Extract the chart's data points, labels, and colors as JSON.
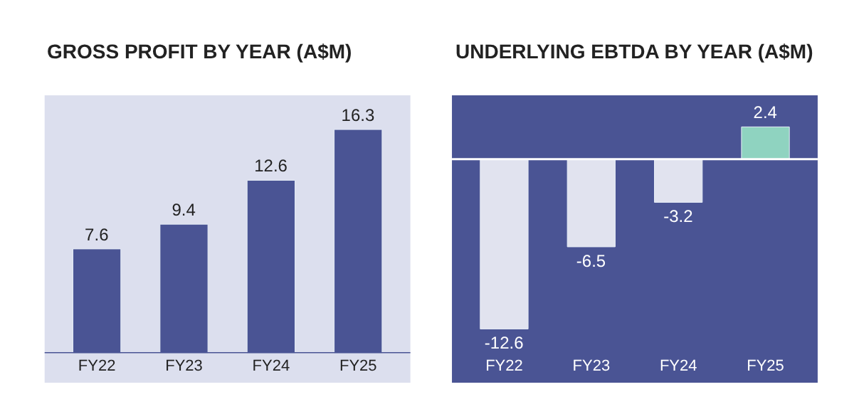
{
  "chart_data": [
    {
      "type": "bar",
      "title": "GROSS PROFIT BY YEAR (A$M)",
      "categories": [
        "FY22",
        "FY23",
        "FY24",
        "FY25"
      ],
      "values": [
        7.6,
        9.4,
        12.6,
        16.3
      ],
      "colors": [
        "#4a5494",
        "#4a5494",
        "#4a5494",
        "#4a5494"
      ],
      "data_labels": true
    },
    {
      "type": "bar",
      "title": "UNDERLYING EBTDA BY YEAR (A$M)",
      "categories": [
        "FY22",
        "FY23",
        "FY24",
        "FY25"
      ],
      "values": [
        -12.6,
        -6.5,
        -3.2,
        2.4
      ],
      "colors": [
        "#e1e3ef",
        "#e1e3ef",
        "#e1e3ef",
        "#8fd3c0"
      ],
      "data_labels": true
    }
  ]
}
